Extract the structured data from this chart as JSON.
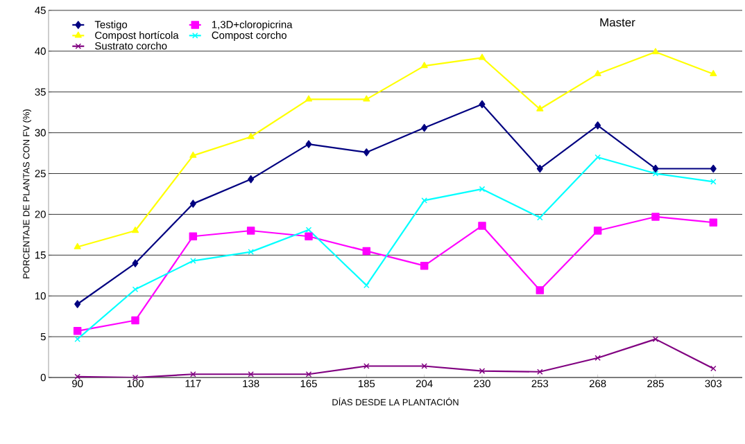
{
  "chart_data": {
    "type": "line",
    "xlabel": "DÍAS DESDE LA PLANTACIÓN",
    "ylabel": "PORCENTAJE DE PLANTAS CON FV (%)",
    "categories": [
      "90",
      "100",
      "117",
      "138",
      "165",
      "185",
      "204",
      "230",
      "253",
      "268",
      "285",
      "303"
    ],
    "series": [
      {
        "name": "Testigo",
        "color": "#000080",
        "marker": "diamond",
        "values": [
          9,
          14,
          21.3,
          24.3,
          28.6,
          27.6,
          30.6,
          33.5,
          25.6,
          30.9,
          25.6,
          25.6
        ]
      },
      {
        "name": "1,3D+cloropicrina",
        "color": "#ff00ff",
        "marker": "square",
        "values": [
          5.7,
          7,
          17.3,
          18,
          17.3,
          15.5,
          13.7,
          18.6,
          10.7,
          18,
          19.7,
          19
        ]
      },
      {
        "name": "Compost hortícola",
        "color": "#ffff00",
        "marker": "triangle",
        "values": [
          16,
          18,
          27.2,
          29.5,
          34.1,
          34.1,
          38.2,
          39.2,
          32.9,
          37.2,
          39.9,
          37.2
        ]
      },
      {
        "name": "Compost corcho",
        "color": "#00ffff",
        "marker": "cross",
        "values": [
          4.7,
          10.8,
          14.3,
          15.4,
          18.1,
          11.3,
          21.7,
          23.1,
          19.6,
          27,
          25,
          24
        ]
      },
      {
        "name": "Sustrato corcho",
        "color": "#800080",
        "marker": "cross",
        "values": [
          0.1,
          0,
          0.4,
          0.4,
          0.4,
          1.4,
          1.4,
          0.8,
          0.7,
          2.4,
          4.7,
          1.1
        ]
      }
    ],
    "ylim": [
      0,
      45
    ],
    "yticks": [
      0,
      5,
      10,
      15,
      20,
      25,
      30,
      35,
      40,
      45
    ],
    "grid": "y",
    "legend": "top left",
    "line_style": "solid",
    "annotations": [
      "Master"
    ]
  }
}
